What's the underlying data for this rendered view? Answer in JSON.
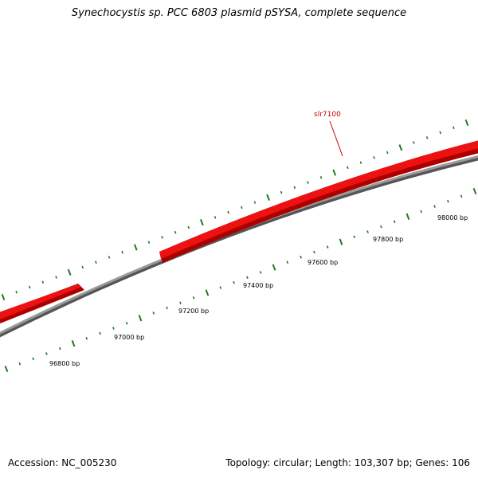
{
  "title": "Synechocystis sp. PCC 6803 plasmid pSYSA, complete sequence",
  "footer": {
    "accession": "Accession: NC_005230",
    "summary": "Topology: circular; Length: 103,307 bp; Genes: 106"
  },
  "colors": {
    "gene": "#ee1111",
    "gene_dark": "#aa0000",
    "backbone": "#888888",
    "backbone_dark": "#555555",
    "tick": "#227722"
  },
  "gene_label": "slr7100",
  "scale_labels": [
    "96800 bp",
    "97000 bp",
    "97200 bp",
    "97400 bp",
    "97600 bp",
    "97800 bp",
    "98000 bp"
  ]
}
